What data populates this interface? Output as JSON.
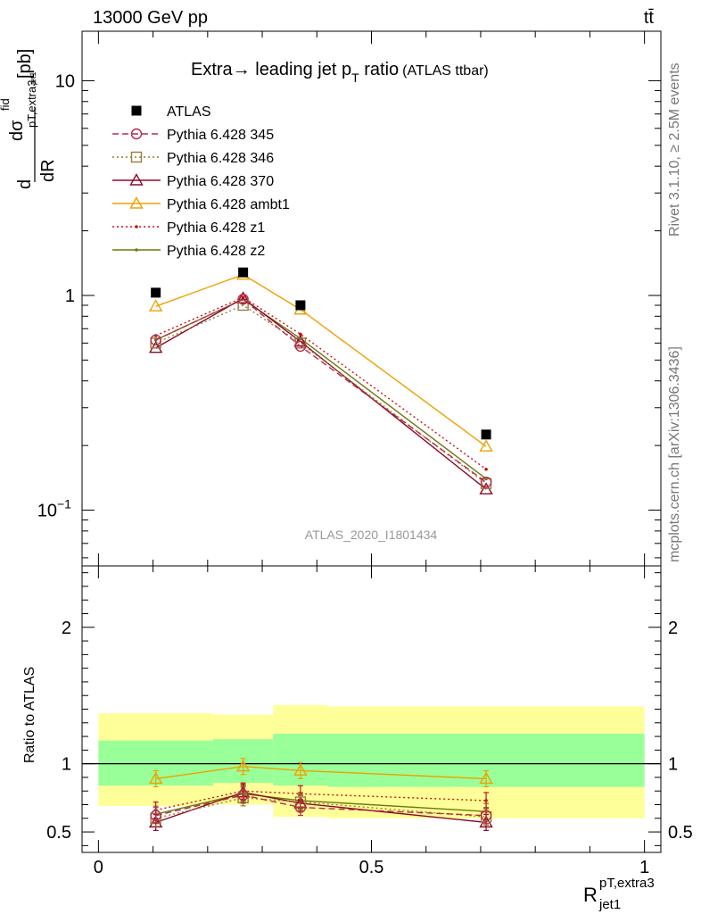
{
  "header": {
    "left": "13000 GeV pp",
    "right": "tt̄"
  },
  "side_labels": {
    "top": "Rivet 3.1.10, ≥ 2.5M events",
    "bottom": "mcplots.cern.ch [arXiv:1306.3436]"
  },
  "analysis_id": "ATLAS_2020_I1801434",
  "chart_data": [
    {
      "type": "line",
      "panel": "main",
      "title": "Extra → leading jet pT ratio",
      "title_parts": {
        "main": "Extra",
        "arrow": "→",
        "mid": " leading jet p",
        "sub": "T",
        "tail": " ratio",
        "note": "(ATLAS ttbar)"
      },
      "ylabel": "dσ^fid / dR^pT,extra3_jet1 [pb]",
      "ylabel_parts": {
        "d": "d",
        "dR": "dR",
        "sigma": "dσ",
        "fid": "fid",
        "sub1": "pT,extra3",
        "sub2": "jet1",
        "unit": "[pb]"
      },
      "yscale": "log",
      "ylim": [
        0.055,
        17
      ],
      "xlim": [
        -0.03,
        1.03
      ],
      "yticks": [
        {
          "v": 10,
          "label": "10"
        },
        {
          "v": 1,
          "label": "1"
        },
        {
          "v": 0.1,
          "label": "10",
          "exp": "−1"
        }
      ],
      "x": [
        0.105,
        0.265,
        0.37,
        0.71
      ],
      "legend_position": "top-left",
      "series": [
        {
          "name": "ATLAS",
          "color": "#000000",
          "marker": "square",
          "dash": "none",
          "values": [
            1.03,
            1.28,
            0.9,
            0.225
          ]
        },
        {
          "name": "Pythia 6.428 345",
          "color": "#b22d4a",
          "marker": "circle",
          "dash": "dashed",
          "values": [
            0.62,
            0.96,
            0.58,
            0.135
          ]
        },
        {
          "name": "Pythia 6.428 346",
          "color": "#9b7a3a",
          "marker": "square-open",
          "dash": "dotted",
          "values": [
            0.6,
            0.9,
            0.6,
            0.133
          ]
        },
        {
          "name": "Pythia 6.428 370",
          "color": "#8b0a2a",
          "marker": "triangle",
          "dash": "solid",
          "values": [
            0.57,
            0.97,
            0.61,
            0.125
          ]
        },
        {
          "name": "Pythia 6.428 ambt1",
          "color": "#f0a000",
          "marker": "triangle",
          "dash": "solid",
          "values": [
            0.89,
            1.25,
            0.86,
            0.198
          ]
        },
        {
          "name": "Pythia 6.428 z1",
          "color": "#cc1111",
          "marker": "dot",
          "dash": "dotted",
          "values": [
            0.65,
            0.98,
            0.66,
            0.155
          ]
        },
        {
          "name": "Pythia 6.428 z2",
          "color": "#6b7a10",
          "marker": "dot",
          "dash": "solid",
          "values": [
            0.62,
            0.96,
            0.63,
            0.14
          ]
        }
      ]
    },
    {
      "type": "line",
      "panel": "ratio",
      "ylabel": "Ratio to ATLAS",
      "xlabel": "R_jet1^pT,extra3",
      "xlabel_parts": {
        "R": "R",
        "sup": "pT,extra3",
        "sub": "jet1"
      },
      "ylim": [
        0.35,
        2.45
      ],
      "yticks": [
        0.5,
        1,
        2
      ],
      "xticks": [
        0,
        0.5,
        1
      ],
      "bin_edges": [
        0,
        0.21,
        0.32,
        0.42,
        1.0
      ],
      "bands": {
        "stat": {
          "color": "#99ff99",
          "low": [
            0.84,
            0.86,
            0.84,
            0.83
          ],
          "high": [
            1.17,
            1.18,
            1.22,
            1.22
          ]
        },
        "total": {
          "color": "#ffff99",
          "low": [
            0.69,
            0.7,
            0.61,
            0.6
          ],
          "high": [
            1.37,
            1.36,
            1.43,
            1.42
          ]
        }
      },
      "x": [
        0.105,
        0.265,
        0.37,
        0.71
      ],
      "series": [
        {
          "name": "Pythia 6.428 345",
          "color": "#b22d4a",
          "marker": "circle",
          "dash": "dashed",
          "values": [
            0.62,
            0.77,
            0.68,
            0.62
          ]
        },
        {
          "name": "Pythia 6.428 346",
          "color": "#9b7a3a",
          "marker": "square-open",
          "dash": "dotted",
          "values": [
            0.6,
            0.75,
            0.72,
            0.61
          ]
        },
        {
          "name": "Pythia 6.428 370",
          "color": "#8b0a2a",
          "marker": "triangle",
          "dash": "solid",
          "values": [
            0.57,
            0.79,
            0.71,
            0.57
          ]
        },
        {
          "name": "Pythia 6.428 ambt1",
          "color": "#f0a000",
          "marker": "triangle",
          "dash": "solid",
          "values": [
            0.89,
            0.98,
            0.95,
            0.89
          ]
        },
        {
          "name": "Pythia 6.428 z1",
          "color": "#cc1111",
          "marker": "dot",
          "dash": "dotted",
          "values": [
            0.66,
            0.8,
            0.78,
            0.73
          ]
        },
        {
          "name": "Pythia 6.428 z2",
          "color": "#6b7a10",
          "marker": "dot",
          "dash": "solid",
          "values": [
            0.63,
            0.78,
            0.73,
            0.65
          ]
        }
      ]
    }
  ]
}
